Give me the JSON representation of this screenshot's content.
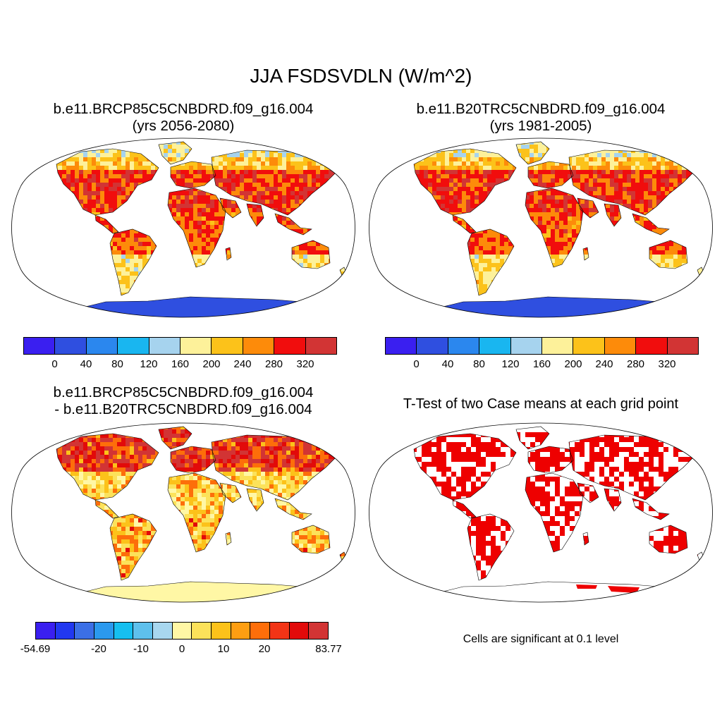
{
  "figure_title": "JJA FSDSVDLN (W/m^2)",
  "panels": {
    "p1": {
      "line1": "b.e11.BRCP85C5CNBDRD.f09_g16.004",
      "line2": "(yrs 2056-2080)"
    },
    "p2": {
      "line1": "b.e11.B20TRC5CNBDRD.f09_g16.004",
      "line2": "(yrs 1981-2005)"
    },
    "p3": {
      "line1": "b.e11.BRCP85C5CNBDRD.f09_g16.004",
      "line2": "- b.e11.B20TRC5CNBDRD.f09_g16.004"
    },
    "p4": {
      "line1": "T-Test of two Case means at each grid point"
    }
  },
  "significance_note": "Cells are significant at 0.1 level",
  "colorbar_abs": {
    "colors": [
      "#3a1ff0",
      "#2f4fe0",
      "#2b87ee",
      "#19b6f0",
      "#a6d3ee",
      "#fdf19a",
      "#fcc21a",
      "#fd8b0a",
      "#f10d0d",
      "#d23434"
    ],
    "labels": [
      "0",
      "40",
      "80",
      "120",
      "160",
      "200",
      "240",
      "280",
      "320"
    ]
  },
  "colorbar_diff": {
    "colors": [
      "#3a1ff0",
      "#2138f0",
      "#3b6fe6",
      "#2b99ee",
      "#16bff0",
      "#5ec0ec",
      "#a8d7ef",
      "#fff7a5",
      "#fce25a",
      "#fcc21a",
      "#fd9e12",
      "#fd6e0a",
      "#f23416",
      "#e20a0a",
      "#d23434"
    ],
    "labels": [
      "-54.69",
      "-20",
      "-10",
      "0",
      "10",
      "20",
      "83.77"
    ]
  },
  "significance_color": "#ee0000",
  "land_colors_abs": [
    "#d23434",
    "#f10d0d",
    "#fd8b0a",
    "#fcc21a",
    "#fdf19a",
    "#a6d3ee"
  ],
  "antarctica_color_abs": "#2f4fe0",
  "land_colors_diff": [
    "#d23434",
    "#e20a0a",
    "#fd6e0a",
    "#fcc21a",
    "#fce25a",
    "#fff7a5",
    "#a8d7ef",
    "#2b99ee"
  ],
  "antarctica_color_diff": "#fff7a5"
}
